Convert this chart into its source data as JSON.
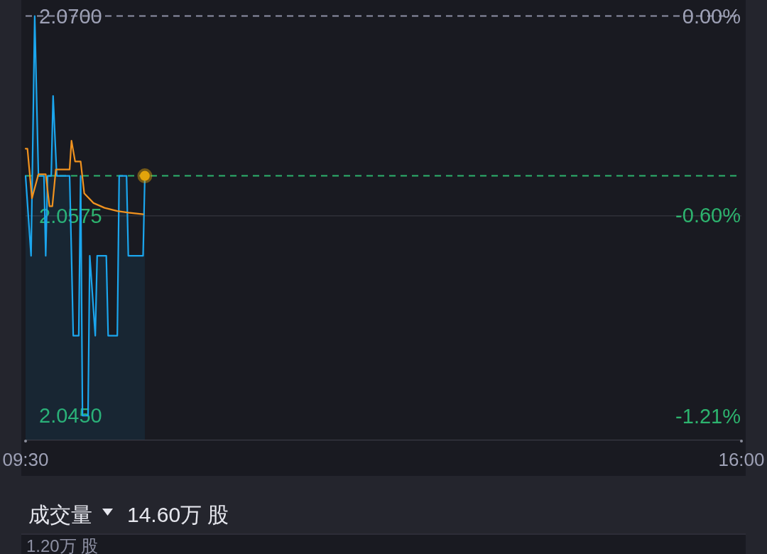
{
  "chart_data": {
    "type": "line",
    "series": [
      {
        "type": "area",
        "color": "#1ba6ee",
        "x": [
          9.5,
          9.55,
          9.583,
          9.617,
          9.667,
          9.683,
          9.7,
          9.733,
          9.75,
          9.783,
          9.9,
          9.917,
          9.933,
          9.983,
          10.0,
          10.017,
          10.067,
          10.083,
          10.133,
          10.15,
          10.233,
          10.25,
          10.333,
          10.35,
          10.417,
          10.433,
          10.567,
          10.583
        ],
        "values": [
          2.06,
          2.055,
          2.07,
          2.06,
          2.06,
          2.055,
          2.06,
          2.06,
          2.065,
          2.06,
          2.06,
          2.055,
          2.05,
          2.05,
          2.06,
          2.045,
          2.045,
          2.055,
          2.05,
          2.055,
          2.055,
          2.05,
          2.05,
          2.06,
          2.06,
          2.055,
          2.055,
          2.06
        ]
      },
      {
        "color": "#f0921f",
        "x": [
          9.5,
          9.517,
          9.558,
          9.617,
          9.683,
          9.717,
          9.743,
          9.775,
          9.9,
          9.917,
          9.95,
          10.0,
          10.033,
          10.117,
          10.217,
          10.333,
          10.433,
          10.567
        ],
        "values": [
          2.0617,
          2.0617,
          2.0586,
          2.0601,
          2.0601,
          2.0581,
          2.0581,
          2.0604,
          2.0604,
          2.0622,
          2.0609,
          2.0609,
          2.0589,
          2.0583,
          2.058,
          2.0578,
          2.0577,
          2.0576
        ]
      },
      {
        "type": "scatter",
        "color": "#e3a50c",
        "marker": "circle",
        "x": [
          10.583
        ],
        "values": [
          2.06
        ]
      }
    ],
    "xlim": [
      9.5,
      16
    ],
    "xticks": [
      {
        "value": 9.5,
        "label": "09:30"
      },
      {
        "value": 16,
        "label": "16:00"
      }
    ],
    "ylim": [
      2.0435,
      2.071
    ],
    "yticks": [
      {
        "value": 2.07,
        "label": "2.0700"
      },
      2.0575,
      {
        "value": 2.045,
        "label": "2.0450"
      }
    ],
    "y2lim": [
      -1.28,
      0.05
    ],
    "y2ticks": [
      {
        "value": 0,
        "label": "0.00%"
      },
      {
        "value": -0.6,
        "label": "-0.60%"
      },
      {
        "value": -1.21,
        "label": "-1.21%"
      }
    ],
    "ref_lines": [
      {
        "axis": "y",
        "value": 2.07,
        "color": "#8e90a6",
        "line_style": "dashed"
      },
      {
        "axis": "y",
        "value": 2.06,
        "color": "#2db36e",
        "line_style": "dashed"
      },
      {
        "axis": "y",
        "value": 2.0575,
        "color": "#34363f",
        "line_style": "solid"
      }
    ],
    "annotations": [
      "成交量",
      "14.60万 股",
      "1.20万 股"
    ]
  }
}
